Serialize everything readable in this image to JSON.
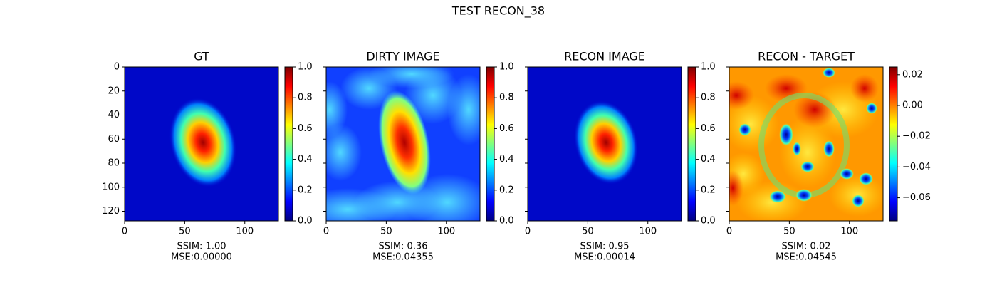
{
  "title": "TEST RECON_38",
  "chart_data": [
    {
      "type": "image",
      "title": "GT",
      "colormap": "jet",
      "xlabel_lines": [
        "SSIM: 1.00",
        "MSE:0.00000"
      ],
      "xlim": [
        0,
        128
      ],
      "xticks": [
        0,
        50,
        100
      ],
      "ylim": [
        128,
        0
      ],
      "yticks": [
        0,
        20,
        40,
        60,
        80,
        100,
        120
      ],
      "show_ytick_labels": true,
      "colorbar": {
        "lim": [
          0,
          1
        ],
        "ticks": [
          {
            "value": 0,
            "label": "0.0"
          },
          0.2,
          0.4,
          0.6,
          0.8,
          {
            "value": 1,
            "label": "1.0"
          }
        ]
      }
    },
    {
      "type": "image",
      "title": "DIRTY IMAGE",
      "colormap": "jet",
      "xlabel_lines": [
        "SSIM: 0.36",
        "MSE:0.04355"
      ],
      "xlim": [
        0,
        128
      ],
      "xticks": [
        0,
        50,
        100
      ],
      "ylim": [
        128,
        0
      ],
      "yticks": [
        0,
        20,
        40,
        60,
        80,
        100,
        120
      ],
      "show_ytick_labels": false,
      "colorbar": {
        "lim": [
          0,
          1
        ],
        "ticks": [
          {
            "value": 0,
            "label": "0.0"
          },
          0.2,
          0.4,
          0.6,
          0.8,
          {
            "value": 1,
            "label": "1.0"
          }
        ]
      }
    },
    {
      "type": "image",
      "title": "RECON IMAGE",
      "colormap": "jet",
      "xlabel_lines": [
        "SSIM: 0.95",
        "MSE:0.00014"
      ],
      "xlim": [
        0,
        128
      ],
      "xticks": [
        0,
        50,
        100
      ],
      "ylim": [
        128,
        0
      ],
      "yticks": [
        0,
        20,
        40,
        60,
        80,
        100,
        120
      ],
      "show_ytick_labels": false,
      "colorbar": {
        "lim": [
          0,
          1
        ],
        "ticks": [
          {
            "value": 0,
            "label": "0.0"
          },
          0.2,
          0.4,
          0.6,
          0.8,
          {
            "value": 1,
            "label": "1.0"
          }
        ]
      }
    },
    {
      "type": "image",
      "title": "RECON - TARGET",
      "colormap": "jet",
      "xlabel_lines": [
        "SSIM: 0.02",
        "MSE:0.04545"
      ],
      "xlim": [
        0,
        128
      ],
      "xticks": [
        0,
        50,
        100
      ],
      "ylim": [
        128,
        0
      ],
      "yticks": [
        0,
        20,
        40,
        60,
        80,
        100,
        120
      ],
      "show_ytick_labels": false,
      "colorbar": {
        "lim": [
          -0.075,
          0.025
        ],
        "ticks": [
          {
            "value": -0.06,
            "label": "−0.06"
          },
          {
            "value": -0.04,
            "label": "−0.04"
          },
          {
            "value": -0.02,
            "label": "−0.02"
          },
          {
            "value": 0,
            "label": "0.00"
          },
          0.02
        ]
      }
    }
  ]
}
